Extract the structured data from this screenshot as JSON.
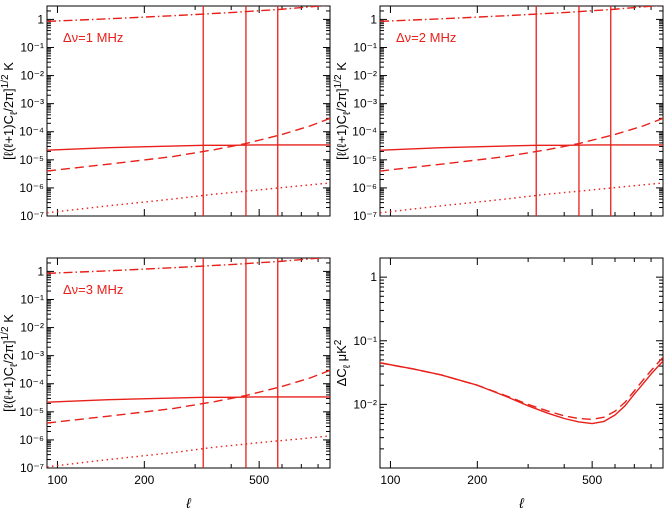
{
  "colors": {
    "curve": "#e8201a",
    "axis": "#000000",
    "background": "#ffffff"
  },
  "chart_data": [
    {
      "id": "p1",
      "type": "line",
      "xscale": "log",
      "yscale": "log",
      "xlim": [
        92,
        880
      ],
      "ylim": [
        1e-07,
        3
      ],
      "ylabel": "[ℓ(ℓ+1)C_ℓ/2π]^1/2 K",
      "xlabel": "",
      "yticks": [
        1e-07,
        1e-06,
        1e-05,
        0.0001,
        0.001,
        0.01,
        0.1,
        1
      ],
      "ytick_labels": [
        "10⁻⁷",
        "10⁻⁶",
        "10⁻⁵",
        "10⁻⁴",
        "10⁻³",
        "10⁻²",
        "10⁻¹",
        "1"
      ],
      "xticks": [
        100,
        200,
        500
      ],
      "xtick_labels": [],
      "annotation": "Δν=1 MHz",
      "vlines": [
        320,
        450,
        580
      ],
      "series": [
        {
          "style": "dashdot",
          "x": [
            92,
            150,
            250,
            400,
            600,
            880
          ],
          "y": [
            0.85,
            1.05,
            1.35,
            1.75,
            2.3,
            3.2
          ]
        },
        {
          "style": "solid",
          "x": [
            92,
            150,
            250,
            320,
            400,
            500,
            600,
            880
          ],
          "y": [
            2.2e-05,
            2.7e-05,
            3.1e-05,
            3.3e-05,
            3.3e-05,
            3.4e-05,
            3.4e-05,
            3.4e-05
          ]
        },
        {
          "style": "dashed",
          "x": [
            92,
            150,
            250,
            350,
            450,
            600,
            750,
            880
          ],
          "y": [
            4e-06,
            7e-06,
            1.3e-05,
            2.3e-05,
            3.8e-05,
            8e-05,
            0.00016,
            0.0003
          ]
        },
        {
          "style": "dotted",
          "x": [
            92,
            150,
            250,
            350,
            500,
            700,
            880
          ],
          "y": [
            1.3e-07,
            2.3e-07,
            4e-07,
            6e-07,
            8.5e-07,
            1.2e-06,
            1.5e-06
          ]
        }
      ]
    },
    {
      "id": "p2",
      "type": "line",
      "xscale": "log",
      "yscale": "log",
      "xlim": [
        92,
        880
      ],
      "ylim": [
        1e-07,
        3
      ],
      "ylabel": "[ℓ(ℓ+1)C_ℓ/2π]^1/2 K",
      "xlabel": "",
      "yticks": [
        1e-07,
        1e-06,
        1e-05,
        0.0001,
        0.001,
        0.01,
        0.1,
        1
      ],
      "ytick_labels": [
        "10⁻⁷",
        "10⁻⁶",
        "10⁻⁵",
        "10⁻⁴",
        "10⁻³",
        "10⁻²",
        "10⁻¹",
        "1"
      ],
      "xticks": [
        100,
        200,
        500
      ],
      "xtick_labels": [],
      "annotation": "Δν=2 MHz",
      "vlines": [
        320,
        450,
        580
      ],
      "series": [
        {
          "style": "dashdot",
          "x": [
            92,
            150,
            250,
            400,
            600,
            880
          ],
          "y": [
            0.85,
            1.05,
            1.35,
            1.75,
            2.3,
            3.2
          ]
        },
        {
          "style": "solid",
          "x": [
            92,
            150,
            250,
            320,
            400,
            500,
            600,
            880
          ],
          "y": [
            2.2e-05,
            2.7e-05,
            3.1e-05,
            3.3e-05,
            3.3e-05,
            3.4e-05,
            3.4e-05,
            3.4e-05
          ]
        },
        {
          "style": "dashed",
          "x": [
            92,
            150,
            250,
            350,
            450,
            600,
            750,
            880
          ],
          "y": [
            4e-06,
            7e-06,
            1.3e-05,
            2.3e-05,
            3.8e-05,
            8e-05,
            0.00016,
            0.0003
          ]
        },
        {
          "style": "dotted",
          "x": [
            92,
            150,
            250,
            350,
            500,
            700,
            880
          ],
          "y": [
            1.3e-07,
            2.3e-07,
            4e-07,
            6e-07,
            8.5e-07,
            1.2e-06,
            1.5e-06
          ]
        }
      ]
    },
    {
      "id": "p3",
      "type": "line",
      "xscale": "log",
      "yscale": "log",
      "xlim": [
        92,
        880
      ],
      "ylim": [
        1e-07,
        3
      ],
      "ylabel": "[ℓ(ℓ+1)C_ℓ/2π]^1/2 K",
      "xlabel": "ℓ",
      "yticks": [
        1e-07,
        1e-06,
        1e-05,
        0.0001,
        0.001,
        0.01,
        0.1,
        1
      ],
      "ytick_labels": [
        "10⁻⁷",
        "10⁻⁶",
        "10⁻⁵",
        "10⁻⁴",
        "10⁻³",
        "10⁻²",
        "10⁻¹",
        "1"
      ],
      "xticks": [
        100,
        200,
        500
      ],
      "xtick_labels": [
        "100",
        "200",
        "500"
      ],
      "annotation": "Δν=3 MHz",
      "vlines": [
        320,
        450,
        580
      ],
      "series": [
        {
          "style": "dashdot",
          "x": [
            92,
            150,
            250,
            400,
            600,
            880
          ],
          "y": [
            0.85,
            1.05,
            1.35,
            1.75,
            2.3,
            3.2
          ]
        },
        {
          "style": "solid",
          "x": [
            92,
            150,
            250,
            320,
            400,
            500,
            600,
            880
          ],
          "y": [
            2.2e-05,
            2.7e-05,
            3.1e-05,
            3.3e-05,
            3.3e-05,
            3.4e-05,
            3.4e-05,
            3.4e-05
          ]
        },
        {
          "style": "dashed",
          "x": [
            92,
            150,
            250,
            350,
            450,
            600,
            750,
            880
          ],
          "y": [
            4e-06,
            7e-06,
            1.3e-05,
            2.3e-05,
            3.8e-05,
            8e-05,
            0.00016,
            0.0003
          ]
        },
        {
          "style": "dotted",
          "x": [
            92,
            150,
            250,
            350,
            500,
            700,
            880
          ],
          "y": [
            1.1e-07,
            2e-07,
            3.5e-07,
            5.5e-07,
            8e-07,
            1.1e-06,
            1.4e-06
          ]
        }
      ]
    },
    {
      "id": "p4",
      "type": "line",
      "xscale": "log",
      "yscale": "log",
      "xlim": [
        92,
        880
      ],
      "ylim": [
        0.001,
        2
      ],
      "ylabel": "ΔC_ℓ μK^2",
      "xlabel": "ℓ",
      "yticks": [
        0.01,
        0.1,
        1
      ],
      "ytick_labels": [
        "10⁻²",
        "10⁻¹",
        "1"
      ],
      "xticks": [
        100,
        200,
        500
      ],
      "xtick_labels": [
        "100",
        "200",
        "500"
      ],
      "annotation": "",
      "vlines": [],
      "series": [
        {
          "style": "solid",
          "x": [
            92,
            120,
            150,
            200,
            250,
            300,
            350,
            400,
            450,
            500,
            550,
            600,
            650,
            700,
            750,
            800,
            880
          ],
          "y": [
            0.045,
            0.036,
            0.029,
            0.02,
            0.0135,
            0.0095,
            0.0073,
            0.006,
            0.0053,
            0.005,
            0.0054,
            0.0068,
            0.0095,
            0.0145,
            0.021,
            0.03,
            0.048
          ]
        },
        {
          "style": "dashed",
          "x": [
            92,
            120,
            150,
            200,
            250,
            300,
            350,
            400,
            450,
            500,
            550,
            600,
            650,
            700,
            750,
            800,
            880
          ],
          "y": [
            0.045,
            0.036,
            0.029,
            0.02,
            0.0138,
            0.01,
            0.0079,
            0.0066,
            0.006,
            0.0058,
            0.0063,
            0.0078,
            0.0108,
            0.0163,
            0.024,
            0.034,
            0.055
          ]
        }
      ]
    }
  ]
}
